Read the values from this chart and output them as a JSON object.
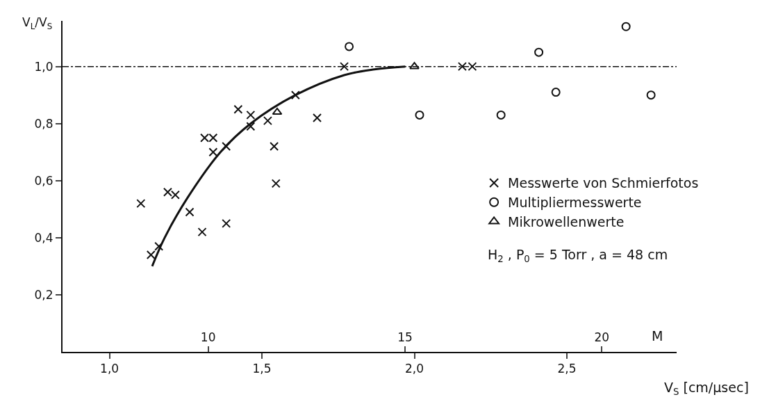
{
  "chart_data": {
    "type": "scatter",
    "ylabel": "V$_{L}$/V$_{S}$",
    "xlabel": "V$_{S}$ [cm/µsec]",
    "x2label": "M",
    "xlim": [
      0.846,
      2.86
    ],
    "ylim": [
      0,
      1.16
    ],
    "x2lim": [
      6.3,
      21.9
    ],
    "xticks": [
      {
        "value": 1.0,
        "label": "1,0"
      },
      {
        "value": 1.5,
        "label": "1,5"
      },
      {
        "value": 2.0,
        "label": "2,0"
      },
      {
        "value": 2.5,
        "label": "2,5"
      }
    ],
    "yticks": [
      {
        "value": 0.2,
        "label": "0,2"
      },
      {
        "value": 0.4,
        "label": "0,4"
      },
      {
        "value": 0.6,
        "label": "0,6"
      },
      {
        "value": 0.8,
        "label": "0,8"
      },
      {
        "value": 1.0,
        "label": "1,0"
      }
    ],
    "x2ticks": [
      10,
      15,
      20
    ],
    "grid": false,
    "legend": "right",
    "series": [
      {
        "name": "Messwerte von Schmierfotos",
        "color": "#111111",
        "marker": "cross",
        "x": [
          1.103,
          1.136,
          1.162,
          1.191,
          1.216,
          1.263,
          1.304,
          1.312,
          1.34,
          1.34,
          1.383,
          1.383,
          1.422,
          1.463,
          1.463,
          1.519,
          1.54,
          1.546,
          1.61,
          1.681,
          1.77,
          2.157,
          2.19
        ],
        "values": [
          0.52,
          0.34,
          0.37,
          0.56,
          0.55,
          0.49,
          0.42,
          0.75,
          0.75,
          0.7,
          0.72,
          0.45,
          0.85,
          0.83,
          0.79,
          0.81,
          0.72,
          0.59,
          0.9,
          0.82,
          1.0,
          1.0,
          1.0
        ]
      },
      {
        "name": "Multipliermesswerte",
        "color": "#111111",
        "marker": "circle",
        "x": [
          1.786,
          2.017,
          2.284,
          2.408,
          2.464,
          2.694,
          2.776
        ],
        "values": [
          1.07,
          0.83,
          0.83,
          1.05,
          0.91,
          1.14,
          0.9
        ]
      },
      {
        "name": "Mikrowellenwerte",
        "color": "#111111",
        "marker": "triangle",
        "x": [
          1.55,
          2.0
        ],
        "values": [
          0.84,
          1.0
        ]
      },
      {
        "type": "line",
        "color": "#111111",
        "marker": "none",
        "line_style": "solid",
        "x": [
          1.14,
          1.181,
          1.256,
          1.364,
          1.463,
          1.61,
          1.77,
          1.869,
          1.97
        ],
        "values": [
          0.3,
          0.4,
          0.54,
          0.7,
          0.8,
          0.9,
          0.97,
          0.99,
          1.0
        ]
      }
    ],
    "ref_lines": [
      {
        "axis": "y",
        "value": 1.0,
        "line_style": "dashdot",
        "color": "#111111"
      }
    ],
    "annotations": [
      "H$_{2}$ , P$_{0}$ = 5 Torr , a = 48 cm"
    ]
  }
}
